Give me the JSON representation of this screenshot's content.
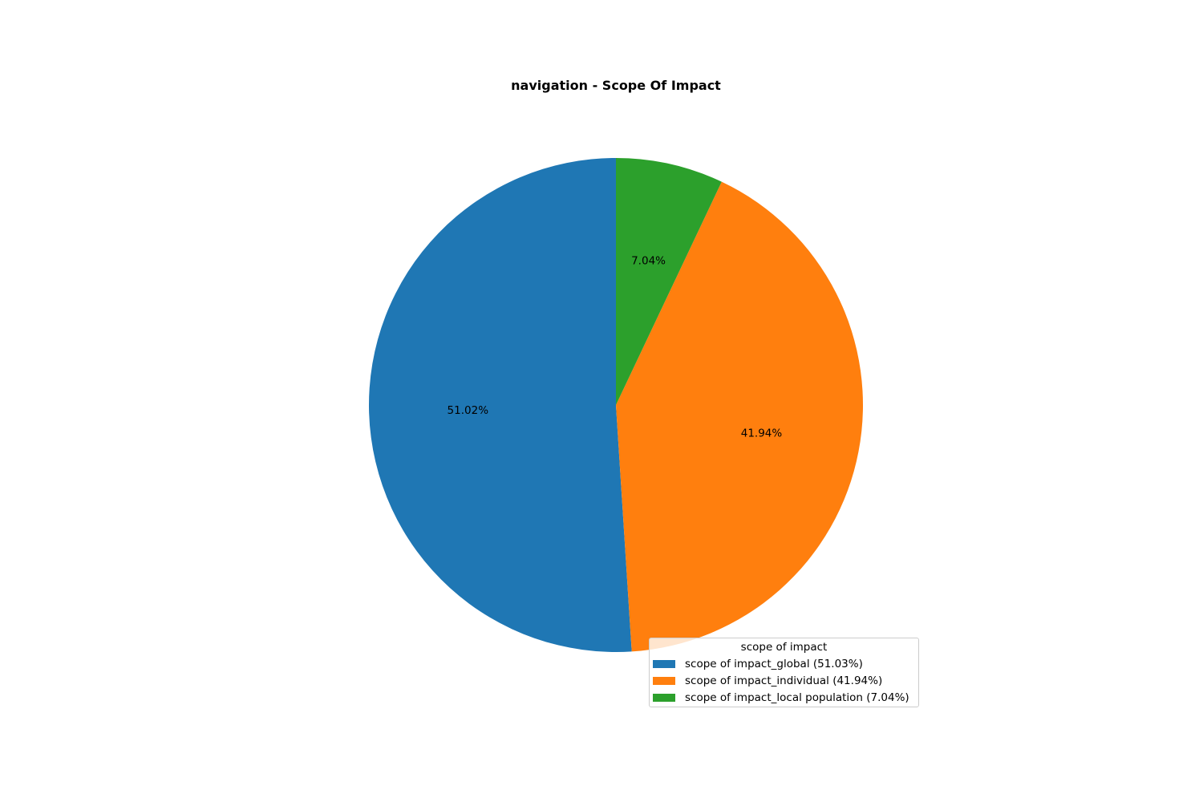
{
  "chart_data": {
    "type": "pie",
    "title": "navigation - Scope Of Impact",
    "slices": [
      {
        "label": "scope of impact_global (51.03%)",
        "value": 51.02,
        "pct_label": "51.02%",
        "color": "#1f77b4"
      },
      {
        "label": "scope of impact_individual (41.94%)",
        "value": 41.94,
        "pct_label": "41.94%",
        "color": "#ff7f0e"
      },
      {
        "label": "scope of impact_local population (7.04%)",
        "value": 7.04,
        "pct_label": "7.04%",
        "color": "#2ca02c"
      }
    ],
    "legend": {
      "title": "scope of impact",
      "placement": "lower-right"
    },
    "start_angle": "top",
    "direction": "counterclockwise"
  }
}
